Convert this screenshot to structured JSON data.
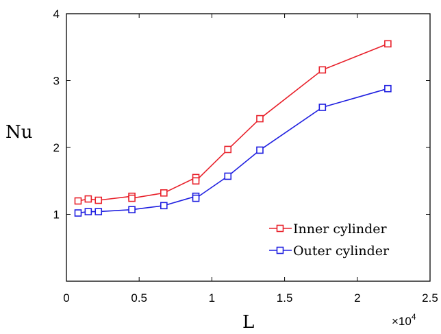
{
  "chart_data": {
    "type": "line",
    "title": "",
    "xlabel": "L",
    "ylabel": "Nu",
    "x_exponent_label": "×10",
    "x_exponent_power": "4",
    "xlim": [
      0,
      2.5
    ],
    "ylim": [
      0,
      4
    ],
    "xticks": [
      0,
      0.5,
      1,
      1.5,
      2,
      2.5
    ],
    "xtick_labels": [
      "0",
      "0.5",
      "1",
      "1.5",
      "2",
      "2.5"
    ],
    "yticks": [
      1,
      2,
      3,
      4
    ],
    "ytick_labels": [
      "1",
      "2",
      "3",
      "4"
    ],
    "grid": false,
    "legend_position": "bottom-right",
    "marker": "square",
    "series": [
      {
        "name": "Inner cylinder",
        "color": "#e8202a",
        "x": [
          0.08,
          0.15,
          0.22,
          0.45,
          0.45,
          0.67,
          0.89,
          0.89,
          1.11,
          1.33,
          1.76,
          2.21
        ],
        "y": [
          1.2,
          1.23,
          1.21,
          1.27,
          1.24,
          1.32,
          1.55,
          1.5,
          1.97,
          2.43,
          3.16,
          3.55
        ]
      },
      {
        "name": "Outer cylinder",
        "color": "#1f1fe0",
        "x": [
          0.08,
          0.15,
          0.22,
          0.45,
          0.67,
          0.89,
          0.89,
          1.11,
          1.33,
          1.76,
          2.21
        ],
        "y": [
          1.02,
          1.04,
          1.04,
          1.07,
          1.13,
          1.27,
          1.24,
          1.57,
          1.96,
          2.6,
          2.88
        ]
      }
    ]
  }
}
